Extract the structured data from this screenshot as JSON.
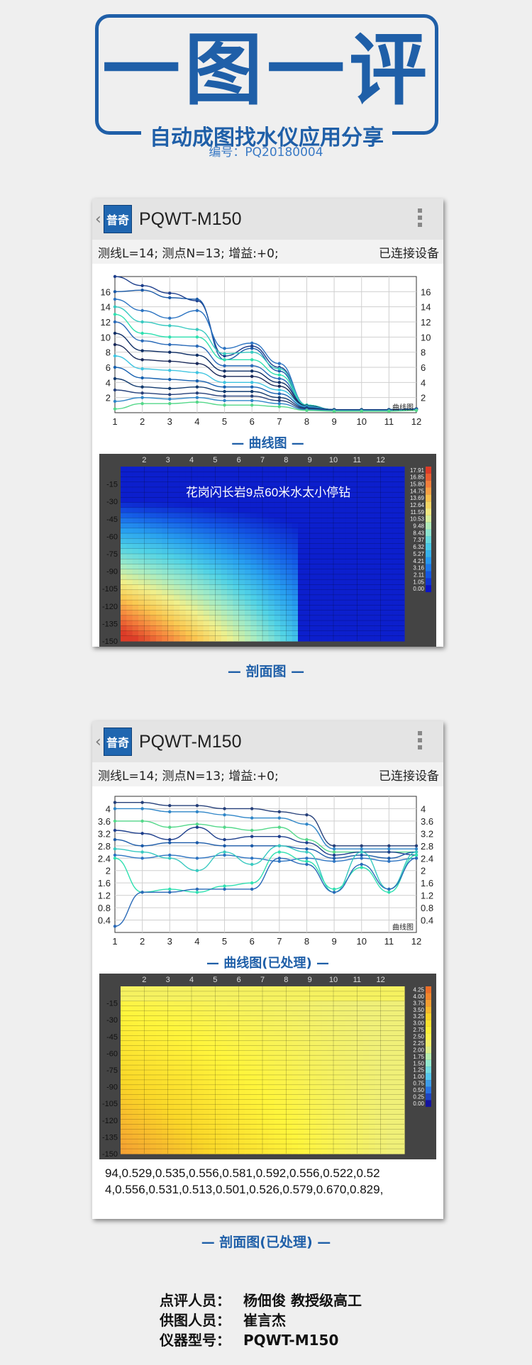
{
  "banner": {
    "title": "一图一评",
    "subtitle": "自动成图找水仪应用分享",
    "code": "编号：PQ20180004"
  },
  "app": {
    "logo_text": "普奇",
    "title": "PQWT-M150"
  },
  "panel1": {
    "status_left": "测线L=14;  测点N=13;  增益:+0;",
    "status_right": "已连接设备",
    "curve_label": "— 曲线图 —",
    "section_label": "— 剖面图 —",
    "annotation": "花岗闪长岩9点60米水太小停钻",
    "curve_watermark": "曲线图"
  },
  "panel2": {
    "status_left": "测线L=14;  测点N=13;  增益:+0;",
    "status_right": "已连接设备",
    "curve_label": "— 曲线图(已处理) —",
    "section_label": "— 剖面图(已处理) —",
    "data_line1": "94,0.529,0.535,0.556,0.581,0.592,0.556,0.522,0.52",
    "data_line2": "4,0.556,0.531,0.513,0.501,0.526,0.579,0.670,0.829,",
    "curve_watermark": "曲线图"
  },
  "credits": {
    "reviewer_label": "点评人员：",
    "reviewer_value": "杨佃俊  教授级高工",
    "provider_label": "供图人员：",
    "provider_value": "崔言杰",
    "model_label": "仪器型号：",
    "model_value": "PQWT-M150"
  },
  "chart_data": [
    {
      "type": "line",
      "title": "曲线图",
      "x": [
        1,
        2,
        3,
        4,
        5,
        6,
        7,
        8,
        9,
        10,
        11,
        12
      ],
      "ylim": [
        0,
        18
      ],
      "yticks": [
        2,
        4,
        6,
        8,
        10,
        12,
        14,
        16
      ],
      "series": [
        {
          "values": [
            18.0,
            16.8,
            15.8,
            14.8,
            7.5,
            8.8,
            6.0,
            1.0,
            0.4,
            0.4,
            0.4,
            0.5
          ]
        },
        {
          "values": [
            16.0,
            16.2,
            15.2,
            15.0,
            7.0,
            8.5,
            5.5,
            1.0,
            0.4,
            0.4,
            0.4,
            0.5
          ]
        },
        {
          "values": [
            15.0,
            13.5,
            12.5,
            13.5,
            8.5,
            9.2,
            6.5,
            1.0,
            0.4,
            0.4,
            0.4,
            0.5
          ]
        },
        {
          "values": [
            14.0,
            12.0,
            11.5,
            11.0,
            7.8,
            8.0,
            5.8,
            1.0,
            0.4,
            0.4,
            0.4,
            0.5
          ]
        },
        {
          "values": [
            13.0,
            10.5,
            10.0,
            10.0,
            7.0,
            7.0,
            5.0,
            1.0,
            0.4,
            0.4,
            0.4,
            0.5
          ]
        },
        {
          "values": [
            12.0,
            9.5,
            9.0,
            8.8,
            6.2,
            6.2,
            4.5,
            0.9,
            0.4,
            0.4,
            0.4,
            0.5
          ]
        },
        {
          "values": [
            10.5,
            8.2,
            8.0,
            7.6,
            5.5,
            5.5,
            4.0,
            0.9,
            0.4,
            0.4,
            0.4,
            0.5
          ]
        },
        {
          "values": [
            9.0,
            7.0,
            6.8,
            6.5,
            4.8,
            4.8,
            3.5,
            0.8,
            0.4,
            0.4,
            0.4,
            0.5
          ]
        },
        {
          "values": [
            7.5,
            5.8,
            5.6,
            5.3,
            4.0,
            4.0,
            3.0,
            0.8,
            0.4,
            0.4,
            0.4,
            0.5
          ]
        },
        {
          "values": [
            6.0,
            4.6,
            4.4,
            4.2,
            3.4,
            3.4,
            2.5,
            0.7,
            0.4,
            0.4,
            0.4,
            0.5
          ]
        },
        {
          "values": [
            4.5,
            3.4,
            3.2,
            3.4,
            2.8,
            2.8,
            2.0,
            0.6,
            0.4,
            0.4,
            0.4,
            0.5
          ]
        },
        {
          "values": [
            3.0,
            2.6,
            2.4,
            2.6,
            2.2,
            2.2,
            1.6,
            0.5,
            0.3,
            0.3,
            0.3,
            0.4
          ]
        },
        {
          "values": [
            1.5,
            2.0,
            1.8,
            2.0,
            1.6,
            1.6,
            1.2,
            0.4,
            0.3,
            0.3,
            0.3,
            0.4
          ]
        },
        {
          "values": [
            0.5,
            1.2,
            1.2,
            1.4,
            1.0,
            1.0,
            0.8,
            0.3,
            0.2,
            0.2,
            0.2,
            0.3
          ]
        }
      ]
    },
    {
      "type": "heatmap",
      "title": "剖面图",
      "x": [
        1,
        2,
        3,
        4,
        5,
        6,
        7,
        8,
        9,
        10,
        11,
        12
      ],
      "yticks": [
        -15,
        -30,
        -45,
        -60,
        -75,
        -90,
        -105,
        -120,
        -135,
        -150
      ],
      "ylim": [
        -150,
        0
      ],
      "colorbar": [
        "17.91",
        "16.85",
        "15.80",
        "14.75",
        "13.69",
        "12.64",
        "11.59",
        "10.53",
        "9.48",
        "8.43",
        "7.37",
        "6.32",
        "5.27",
        "4.21",
        "3.16",
        "2.11",
        "1.05",
        "0.00"
      ]
    },
    {
      "type": "line",
      "title": "曲线图(已处理)",
      "x": [
        1,
        2,
        3,
        4,
        5,
        6,
        7,
        8,
        9,
        10,
        11,
        12
      ],
      "ylim": [
        0,
        4.4
      ],
      "yticks": [
        0.4,
        0.8,
        1.2,
        1.6,
        2.0,
        2.4,
        2.8,
        3.2,
        3.6,
        4.0
      ],
      "series": [
        {
          "values": [
            4.2,
            4.2,
            4.1,
            4.1,
            4.0,
            4.0,
            3.9,
            3.8,
            2.8,
            2.8,
            2.8,
            2.8
          ]
        },
        {
          "values": [
            4.0,
            4.0,
            3.9,
            3.9,
            3.8,
            3.7,
            3.7,
            3.5,
            2.7,
            2.7,
            2.7,
            2.7
          ]
        },
        {
          "values": [
            3.6,
            3.6,
            3.4,
            3.5,
            3.4,
            3.3,
            3.4,
            3.0,
            2.6,
            2.6,
            2.6,
            2.6
          ]
        },
        {
          "values": [
            3.3,
            3.2,
            3.0,
            3.4,
            3.0,
            3.1,
            3.1,
            2.9,
            2.5,
            2.6,
            2.6,
            2.5
          ]
        },
        {
          "values": [
            3.0,
            2.8,
            2.9,
            2.9,
            2.8,
            2.8,
            2.8,
            2.7,
            2.4,
            2.5,
            2.4,
            2.6
          ]
        },
        {
          "values": [
            2.5,
            2.4,
            2.5,
            2.4,
            2.5,
            2.4,
            2.3,
            2.4,
            2.3,
            2.4,
            2.3,
            2.4
          ]
        },
        {
          "values": [
            2.7,
            2.6,
            2.4,
            2.0,
            2.6,
            2.2,
            2.8,
            2.6,
            1.3,
            2.6,
            1.4,
            2.6
          ]
        },
        {
          "values": [
            2.4,
            1.3,
            1.4,
            1.3,
            1.5,
            1.6,
            2.6,
            2.3,
            1.4,
            2.1,
            1.3,
            2.5
          ]
        },
        {
          "values": [
            0.2,
            1.3,
            1.3,
            1.4,
            1.4,
            1.4,
            2.4,
            2.2,
            1.3,
            2.2,
            1.4,
            2.4
          ]
        }
      ]
    },
    {
      "type": "heatmap",
      "title": "剖面图(已处理)",
      "x": [
        1,
        2,
        3,
        4,
        5,
        6,
        7,
        8,
        9,
        10,
        11,
        12
      ],
      "yticks": [
        -15,
        -30,
        -45,
        -60,
        -75,
        -90,
        -105,
        -120,
        -135,
        -150
      ],
      "ylim": [
        -150,
        0
      ],
      "colorbar": [
        "4.25",
        "4.00",
        "3.75",
        "3.50",
        "3.25",
        "3.00",
        "2.75",
        "2.50",
        "2.25",
        "2.00",
        "1.75",
        "1.50",
        "1.25",
        "1.00",
        "0.75",
        "0.50",
        "0.25",
        "0.00"
      ]
    }
  ]
}
